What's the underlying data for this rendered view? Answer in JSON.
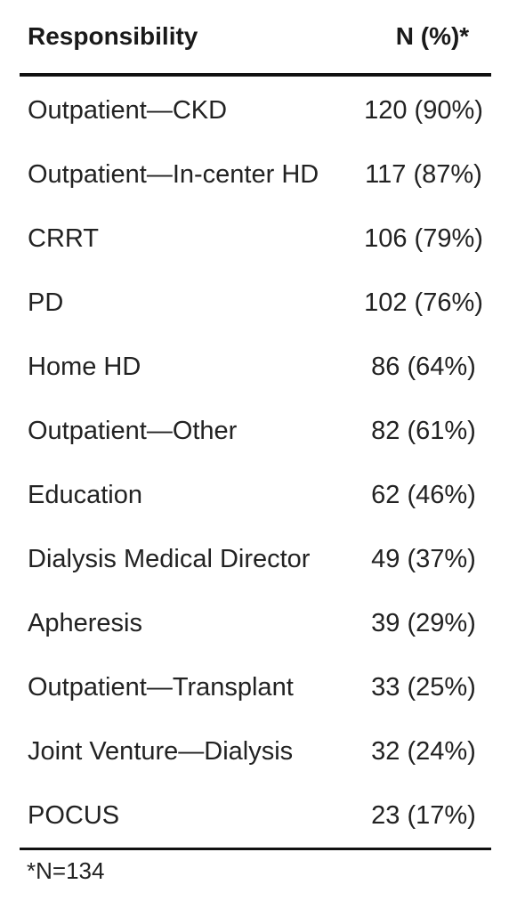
{
  "table": {
    "headers": {
      "responsibility": "Responsibility",
      "n_percent": "N (%)*"
    },
    "rows": [
      {
        "responsibility": "Outpatient—CKD",
        "n_percent": "120 (90%)"
      },
      {
        "responsibility": "Outpatient—In-center HD",
        "n_percent": "117 (87%)"
      },
      {
        "responsibility": "CRRT",
        "n_percent": "106 (79%)"
      },
      {
        "responsibility": "PD",
        "n_percent": "102 (76%)"
      },
      {
        "responsibility": "Home HD",
        "n_percent": "86 (64%)"
      },
      {
        "responsibility": "Outpatient—Other",
        "n_percent": "82 (61%)"
      },
      {
        "responsibility": "Education",
        "n_percent": "62 (46%)"
      },
      {
        "responsibility": "Dialysis Medical Director",
        "n_percent": "49 (37%)"
      },
      {
        "responsibility": "Apheresis",
        "n_percent": "39 (29%)"
      },
      {
        "responsibility": "Outpatient—Transplant",
        "n_percent": "33 (25%)"
      },
      {
        "responsibility": "Joint Venture—Dialysis",
        "n_percent": "32 (24%)"
      },
      {
        "responsibility": "POCUS",
        "n_percent": "23 (17%)"
      }
    ],
    "footnote": "*N=134"
  }
}
